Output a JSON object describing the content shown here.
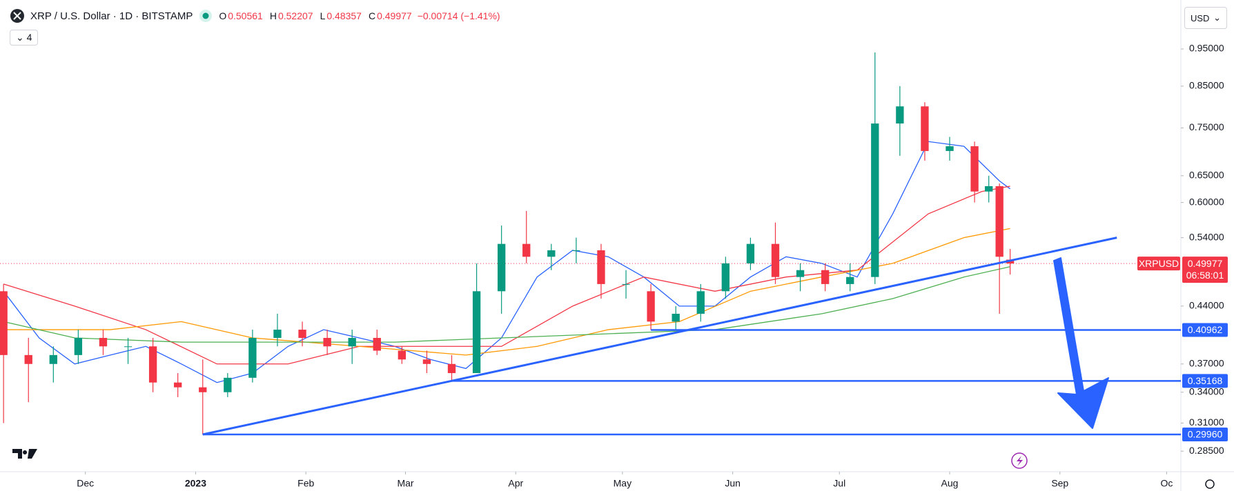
{
  "chart_data": {
    "type": "candlestick",
    "title": "XRP / U.S. Dollar · 1D · BITSTAMP",
    "legend_ohlc": [
      {
        "label": "O",
        "value": 0.50561
      },
      {
        "label": "H",
        "value": 0.52207
      },
      {
        "label": "L",
        "value": 0.48357
      },
      {
        "label": "C",
        "value": 0.49977
      }
    ],
    "change": "−0.00714 (−1.41%)",
    "indicators_count": 4,
    "currency": "USD",
    "symbol_tag": "XRPUSD",
    "last_price": 0.49977,
    "countdown": "06:58:01",
    "log_scale": true,
    "up_color": "#089981",
    "down_color": "#f23645",
    "xlim": [
      -1,
      331
    ],
    "ylim": [
      0.268,
      1.1
    ],
    "xticks": [
      {
        "value": 23,
        "label": "Dec"
      },
      {
        "value": 54,
        "label": "2023"
      },
      {
        "value": 85,
        "label": "Feb"
      },
      {
        "value": 113,
        "label": "Mar"
      },
      {
        "value": 144,
        "label": "Apr"
      },
      {
        "value": 174,
        "label": "May"
      },
      {
        "value": 205,
        "label": "Jun"
      },
      {
        "value": 235,
        "label": "Jul"
      },
      {
        "value": 266,
        "label": "Aug"
      },
      {
        "value": 297,
        "label": "Sep"
      },
      {
        "value": 327,
        "label": "Oc"
      }
    ],
    "yticks": [
      {
        "value": 0.95,
        "label": "0.95000"
      },
      {
        "value": 0.85,
        "label": "0.85000"
      },
      {
        "value": 0.75,
        "label": "0.75000"
      },
      {
        "value": 0.65,
        "label": "0.65000"
      },
      {
        "value": 0.6,
        "label": "0.60000"
      },
      {
        "value": 0.54,
        "label": "0.54000"
      },
      {
        "value": 0.44,
        "label": "0.44000"
      },
      {
        "value": 0.37,
        "label": "0.37000"
      },
      {
        "value": 0.34,
        "label": "0.34000"
      },
      {
        "value": 0.31,
        "label": "0.31000"
      },
      {
        "value": 0.285,
        "label": "0.28500"
      }
    ],
    "candles": {
      "x": [
        0,
        7,
        14,
        21,
        28,
        35,
        42,
        49,
        56,
        63,
        70,
        77,
        84,
        91,
        98,
        105,
        112,
        119,
        126,
        133,
        140,
        147,
        154,
        161,
        168,
        175,
        182,
        189,
        196,
        203,
        210,
        217,
        224,
        231,
        238,
        245,
        252,
        259,
        266,
        273,
        277,
        280,
        283
      ],
      "open": [
        0.46,
        0.38,
        0.37,
        0.38,
        0.4,
        0.39,
        0.39,
        0.35,
        0.345,
        0.34,
        0.355,
        0.4,
        0.41,
        0.4,
        0.39,
        0.4,
        0.385,
        0.375,
        0.37,
        0.36,
        0.46,
        0.53,
        0.51,
        0.52,
        0.52,
        0.47,
        0.46,
        0.42,
        0.43,
        0.46,
        0.5,
        0.53,
        0.48,
        0.49,
        0.47,
        0.48,
        0.76,
        0.8,
        0.7,
        0.71,
        0.62,
        0.63,
        0.50561
      ],
      "high": [
        0.47,
        0.4,
        0.39,
        0.41,
        0.41,
        0.4,
        0.4,
        0.36,
        0.375,
        0.36,
        0.41,
        0.43,
        0.42,
        0.41,
        0.41,
        0.41,
        0.39,
        0.385,
        0.38,
        0.5,
        0.56,
        0.585,
        0.53,
        0.54,
        0.53,
        0.49,
        0.47,
        0.44,
        0.47,
        0.51,
        0.54,
        0.565,
        0.5,
        0.5,
        0.5,
        0.94,
        0.85,
        0.81,
        0.73,
        0.72,
        0.65,
        0.635,
        0.52207
      ],
      "low": [
        0.31,
        0.33,
        0.35,
        0.37,
        0.38,
        0.37,
        0.34,
        0.335,
        0.2996,
        0.335,
        0.35,
        0.39,
        0.39,
        0.38,
        0.37,
        0.38,
        0.37,
        0.36,
        0.35168,
        0.36,
        0.43,
        0.5,
        0.49,
        0.5,
        0.45,
        0.45,
        0.40962,
        0.41,
        0.42,
        0.45,
        0.49,
        0.47,
        0.46,
        0.46,
        0.46,
        0.47,
        0.69,
        0.68,
        0.68,
        0.6,
        0.6,
        0.43,
        0.48357
      ],
      "close": [
        0.38,
        0.37,
        0.38,
        0.4,
        0.39,
        0.39,
        0.35,
        0.345,
        0.34,
        0.355,
        0.4,
        0.41,
        0.4,
        0.39,
        0.4,
        0.385,
        0.375,
        0.37,
        0.36,
        0.46,
        0.53,
        0.51,
        0.52,
        0.52,
        0.47,
        0.47,
        0.42,
        0.43,
        0.46,
        0.5,
        0.53,
        0.48,
        0.49,
        0.47,
        0.48,
        0.76,
        0.8,
        0.7,
        0.71,
        0.62,
        0.63,
        0.51,
        0.49977
      ]
    },
    "series": [
      {
        "color": "#2962ff",
        "x": [
          0,
          10,
          20,
          30,
          40,
          50,
          60,
          70,
          80,
          90,
          100,
          110,
          120,
          130,
          140,
          150,
          160,
          170,
          180,
          190,
          200,
          210,
          220,
          230,
          240,
          250,
          260,
          270,
          280,
          283
        ],
        "values": [
          0.46,
          0.4,
          0.37,
          0.38,
          0.39,
          0.37,
          0.35,
          0.36,
          0.39,
          0.41,
          0.4,
          0.39,
          0.375,
          0.365,
          0.4,
          0.48,
          0.52,
          0.51,
          0.48,
          0.44,
          0.44,
          0.48,
          0.51,
          0.5,
          0.48,
          0.58,
          0.72,
          0.71,
          0.64,
          0.625
        ]
      },
      {
        "color": "#f23645",
        "x": [
          0,
          20,
          40,
          60,
          80,
          100,
          120,
          140,
          160,
          180,
          200,
          220,
          240,
          260,
          275,
          283
        ],
        "values": [
          0.47,
          0.44,
          0.41,
          0.37,
          0.37,
          0.39,
          0.39,
          0.39,
          0.44,
          0.48,
          0.46,
          0.48,
          0.49,
          0.58,
          0.62,
          0.63
        ]
      },
      {
        "color": "#ff9800",
        "x": [
          0,
          30,
          50,
          70,
          100,
          130,
          150,
          170,
          190,
          210,
          230,
          250,
          270,
          283
        ],
        "values": [
          0.41,
          0.41,
          0.42,
          0.4,
          0.39,
          0.38,
          0.39,
          0.41,
          0.42,
          0.46,
          0.48,
          0.5,
          0.54,
          0.555
        ]
      },
      {
        "color": "#4caf50",
        "x": [
          0,
          20,
          50,
          80,
          110,
          140,
          170,
          200,
          230,
          250,
          270,
          283
        ],
        "values": [
          0.42,
          0.4,
          0.395,
          0.395,
          0.395,
          0.4,
          0.405,
          0.41,
          0.43,
          0.45,
          0.48,
          0.495
        ]
      }
    ],
    "trendline": {
      "color": "#2962ff",
      "x": [
        56,
        313
      ],
      "values": [
        0.2996,
        0.54
      ]
    },
    "levels": {
      "color": "#2962ff",
      "x_start": [
        182,
        126,
        56
      ],
      "values": [
        0.40962,
        0.35168,
        {
          "value": 0.2996,
          "label": "0.29960"
        }
      ]
    }
  }
}
